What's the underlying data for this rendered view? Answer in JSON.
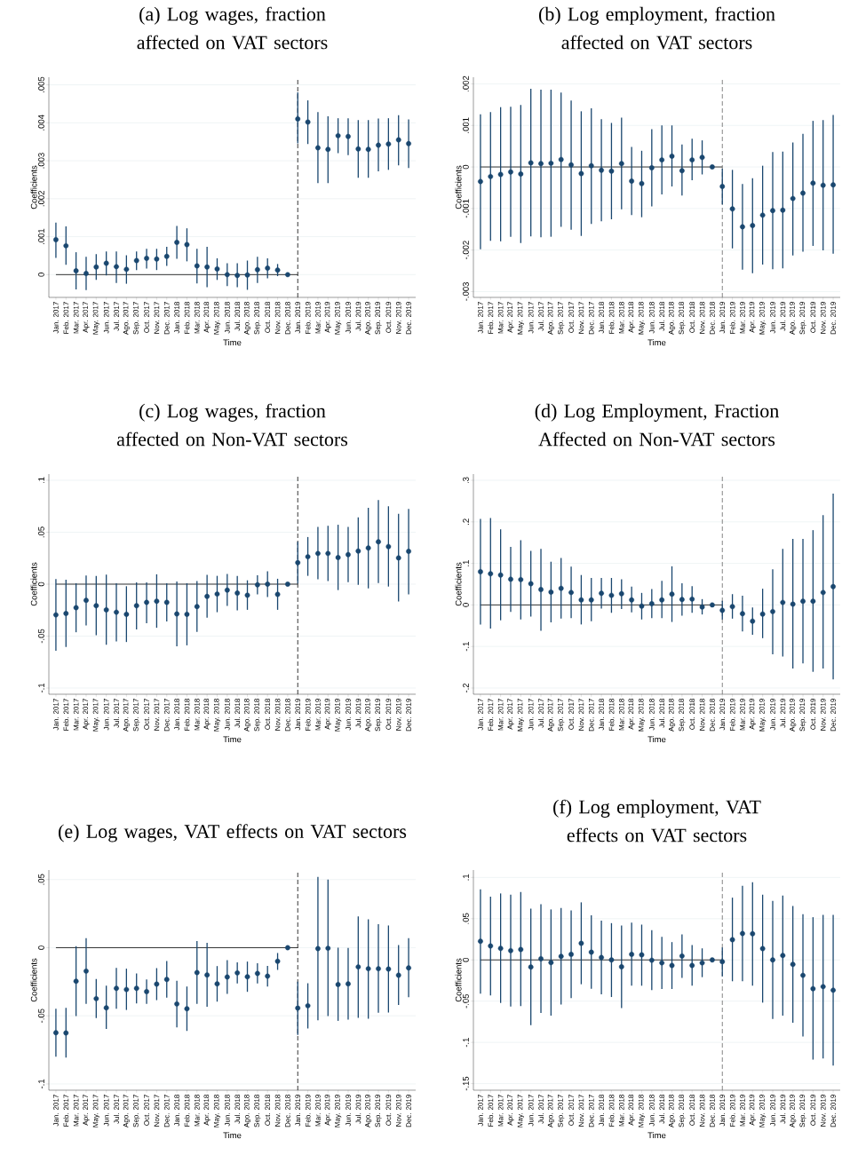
{
  "chart_data": [
    {
      "type": "scatter",
      "title": "(a) Log wages, fraction affected on VAT sectors",
      "xlabel": "Time",
      "ylabel": "Coefficients",
      "grid": "y",
      "marker": "circle",
      "categories": [
        "Jan. 2017",
        "Feb. 2017",
        "Mar. 2017",
        "Apr. 2017",
        "May. 2017",
        "Jun. 2017",
        "Jul. 2017",
        "Ago. 2017",
        "Sep. 2017",
        "Oct. 2017",
        "Nov. 2017",
        "Dec. 2017",
        "Jan. 2018",
        "Feb. 2018",
        "Mar. 2018",
        "Apr. 2018",
        "May. 2018",
        "Jun. 2018",
        "Jul. 2018",
        "Ago. 2018",
        "Sep. 2018",
        "Oct. 2018",
        "Nov. 2018",
        "Dec. 2018",
        "Jan. 2019",
        "Feb. 2019",
        "Mar. 2019",
        "Apr. 2019",
        "May. 2019",
        "Jun. 2019",
        "Jul. 2019",
        "Ago. 2019",
        "Sep. 2019",
        "Oct. 2019",
        "Nov. 2019",
        "Dec. 2019"
      ],
      "ylim": [
        -0.0006,
        0.0052
      ],
      "yticks": [
        0,
        {
          "value": 0.001,
          "label": ".001"
        },
        {
          "value": 0.002,
          "label": ".002"
        },
        {
          "value": 0.003,
          "label": ".003"
        },
        {
          "value": 0.004,
          "label": ".004"
        },
        {
          "value": 0.005,
          "label": ".005"
        }
      ],
      "ref_lines": [
        {
          "axis": "x",
          "value": "Jan. 2019",
          "line_style": "dashed",
          "color": "#000000"
        },
        {
          "axis": "y",
          "value": 0,
          "line_style": "solid",
          "color": "#000000"
        }
      ],
      "series": [
        {
          "color": "#1a476f",
          "values": [
            0.00092,
            0.00076,
            0.0001,
            3e-05,
            0.0002,
            0.0003,
            0.00021,
            0.00014,
            0.00037,
            0.00043,
            0.00041,
            0.00048,
            0.00085,
            0.00079,
            0.00023,
            0.0002,
            0.00015,
            0.0,
            -2e-05,
            -1e-05,
            0.00013,
            0.00017,
            0.00012,
            0.0,
            0.0041,
            0.00402,
            0.00334,
            0.0033,
            0.00366,
            0.00364,
            0.00331,
            0.0033,
            0.00341,
            0.00344,
            0.00355,
            0.00345
          ],
          "errors": [
            [
              0.00044,
              0.00137
            ],
            [
              0.00026,
              0.00127
            ],
            [
              -0.00039,
              0.00059
            ],
            [
              -0.00041,
              0.00047
            ],
            [
              -0.00014,
              0.00054
            ],
            [
              -2e-05,
              0.00061
            ],
            [
              -0.00022,
              0.00061
            ],
            [
              -0.00024,
              0.00051
            ],
            [
              0.00012,
              0.00061
            ],
            [
              0.00016,
              0.00068
            ],
            [
              0.00012,
              0.00068
            ],
            [
              0.00023,
              0.00073
            ],
            [
              0.00042,
              0.00128
            ],
            [
              0.00035,
              0.00122
            ],
            [
              -0.00023,
              0.00068
            ],
            [
              -0.00033,
              0.00073
            ],
            [
              -0.00014,
              0.00043
            ],
            [
              -0.0003,
              0.0003
            ],
            [
              -0.00033,
              0.0003
            ],
            [
              -0.0004,
              0.00037
            ],
            [
              -0.00022,
              0.00047
            ],
            [
              -0.0001,
              0.00043
            ],
            [
              -4e-05,
              0.00028
            ],
            null,
            [
              0.00346,
              0.0048
            ],
            [
              0.00344,
              0.00459
            ],
            [
              0.00241,
              0.00428
            ],
            [
              0.00241,
              0.00417
            ],
            [
              0.0032,
              0.00412
            ],
            [
              0.00315,
              0.00412
            ],
            [
              0.00255,
              0.00407
            ],
            [
              0.00255,
              0.00407
            ],
            [
              0.00272,
              0.00411
            ],
            [
              0.00276,
              0.00412
            ],
            [
              0.00288,
              0.0042
            ],
            [
              0.00281,
              0.00409
            ]
          ]
        }
      ]
    },
    {
      "type": "scatter",
      "title": "(b) Log employment, fraction affected on VAT sectors",
      "xlabel": "Time",
      "ylabel": "Coefficients",
      "grid": "y",
      "marker": "circle",
      "categories": [
        "Jan. 2017",
        "Feb. 2017",
        "Mar. 2017",
        "Apr. 2017",
        "May. 2017",
        "Jun. 2017",
        "Jul. 2017",
        "Ago. 2017",
        "Sep. 2017",
        "Oct. 2017",
        "Nov. 2017",
        "Dec. 2017",
        "Jan. 2018",
        "Feb. 2018",
        "Mar. 2018",
        "Apr. 2018",
        "May. 2018",
        "Jun. 2018",
        "Jul. 2018",
        "Ago. 2018",
        "Sep. 2018",
        "Oct. 2018",
        "Nov. 2018",
        "Dec. 2018",
        "Jan. 2019",
        "Feb. 2019",
        "Mar. 2019",
        "Apr. 2019",
        "May. 2019",
        "Jun. 2019",
        "Jul. 2019",
        "Ago. 2019",
        "Sep. 2019",
        "Oct. 2019",
        "Nov. 2019",
        "Dec. 2019"
      ],
      "ylim": [
        -0.00314,
        0.00216
      ],
      "yticks": [
        {
          "value": -0.003,
          "label": "-.003"
        },
        {
          "value": -0.002,
          "label": "-.002"
        },
        {
          "value": -0.001,
          "label": "-.001"
        },
        0,
        {
          "value": 0.001,
          "label": ".001"
        },
        {
          "value": 0.002,
          "label": ".002"
        }
      ],
      "ref_lines": [
        {
          "axis": "x",
          "value": "Jan. 2019",
          "line_style": "dashed",
          "color": "#666666"
        },
        {
          "axis": "y",
          "value": 0,
          "line_style": "solid",
          "color": "#000000"
        }
      ],
      "series": [
        {
          "color": "#1a476f",
          "values": [
            -0.00035,
            -0.00023,
            -0.00018,
            -0.00012,
            -0.00017,
            0.0001,
            8e-05,
            9e-05,
            0.00018,
            5e-05,
            -0.00016,
            3e-05,
            -8e-05,
            -0.0001,
            8e-05,
            -0.00034,
            -0.0004,
            -2e-05,
            0.00017,
            0.00026,
            -9e-05,
            0.00017,
            0.00023,
            0.0,
            -0.00047,
            -0.00101,
            -0.00144,
            -0.00141,
            -0.00116,
            -0.00105,
            -0.00104,
            -0.00076,
            -0.00063,
            -0.00039,
            -0.00044,
            -0.00043
          ],
          "errors": [
            [
              -0.00198,
              0.00127
            ],
            [
              -0.00178,
              0.00132
            ],
            [
              -0.00179,
              0.00144
            ],
            [
              -0.00168,
              0.00145
            ],
            [
              -0.00183,
              0.00149
            ],
            [
              -0.00167,
              0.00188
            ],
            [
              -0.00169,
              0.00186
            ],
            [
              -0.00168,
              0.00186
            ],
            [
              -0.00144,
              0.00179
            ],
            [
              -0.00151,
              0.0016
            ],
            [
              -0.00166,
              0.00134
            ],
            [
              -0.00137,
              0.00141
            ],
            [
              -0.00131,
              0.00115
            ],
            [
              -0.00126,
              0.00106
            ],
            [
              -0.00102,
              0.00119
            ],
            [
              -0.00116,
              0.00048
            ],
            [
              -0.00121,
              0.00039
            ],
            [
              -0.00095,
              0.00091
            ],
            [
              -0.00066,
              0.001
            ],
            [
              -0.00047,
              0.001
            ],
            [
              -0.00069,
              0.00054
            ],
            [
              -0.00032,
              0.00068
            ],
            [
              -0.00018,
              0.00064
            ],
            null,
            [
              -0.0009,
              -4e-05
            ],
            [
              -0.00196,
              -7e-05
            ],
            [
              -0.00247,
              -0.00041
            ],
            [
              -0.00256,
              -0.00027
            ],
            [
              -0.00235,
              3e-05
            ],
            [
              -0.00246,
              0.00036
            ],
            [
              -0.00244,
              0.00037
            ],
            [
              -0.00213,
              0.00059
            ],
            [
              -0.00204,
              0.0008
            ],
            [
              -0.0019,
              0.00111
            ],
            [
              -0.00201,
              0.00113
            ],
            [
              -0.00209,
              0.00125
            ]
          ]
        }
      ]
    },
    {
      "type": "scatter",
      "title": "(c) Log wages, fraction affected on Non-VAT sectors",
      "xlabel": "Time",
      "ylabel": "Coefficients",
      "grid": "y",
      "marker": "circle",
      "categories": [
        "Jan. 2017",
        "Feb. 2017",
        "Mar. 2017",
        "Apr. 2017",
        "May. 2017",
        "Jun. 2017",
        "Jul. 2017",
        "Ago. 2017",
        "Sep. 2017",
        "Oct. 2017",
        "Nov. 2017",
        "Dec. 2017",
        "Jan. 2018",
        "Feb. 2018",
        "Mar. 2018",
        "Apr. 2018",
        "May. 2018",
        "Jun. 2018",
        "Jul. 2018",
        "Ago. 2018",
        "Sep. 2018",
        "Oct. 2018",
        "Nov. 2018",
        "Dec. 2018",
        "Jan. 2019",
        "Feb. 2019",
        "Mar. 2019",
        "Apr. 2019",
        "May. 2019",
        "Jun. 2019",
        "Jul. 2019",
        "Ago. 2019",
        "Sep. 2019",
        "Oct. 2019",
        "Nov. 2019",
        "Dec. 2019"
      ],
      "ylim": [
        -0.106,
        0.106
      ],
      "yticks": [
        {
          "value": -0.1,
          "label": "-.1"
        },
        {
          "value": -0.05,
          "label": "-.05"
        },
        0,
        {
          "value": 0.05,
          "label": ".05"
        },
        {
          "value": 0.1,
          "label": ".1"
        }
      ],
      "ref_lines": [
        {
          "axis": "x",
          "value": "Jan. 2019",
          "line_style": "dashed",
          "color": "#000000"
        },
        {
          "axis": "y",
          "value": 0,
          "line_style": "solid",
          "color": "#000000"
        }
      ],
      "series": [
        {
          "color": "#1a476f",
          "values": [
            -0.0296,
            -0.0282,
            -0.0227,
            -0.0155,
            -0.0207,
            -0.0247,
            -0.027,
            -0.029,
            -0.0207,
            -0.0175,
            -0.0164,
            -0.0175,
            -0.0287,
            -0.029,
            -0.0216,
            -0.0118,
            -0.0095,
            -0.0057,
            -0.0086,
            -0.0106,
            -0.0006,
            0.0,
            -0.0098,
            0.0,
            0.0207,
            0.0264,
            0.0296,
            0.0296,
            0.0256,
            0.0284,
            0.0319,
            0.0348,
            0.0408,
            0.0362,
            0.0253,
            0.0316
          ],
          "errors": [
            [
              -0.0641,
              0.0049
            ],
            [
              -0.0604,
              0.0043
            ],
            [
              -0.0463,
              0.0009
            ],
            [
              -0.0397,
              0.0083
            ],
            [
              -0.0491,
              0.008
            ],
            [
              -0.0583,
              0.0092
            ],
            [
              -0.0552,
              0.0009
            ],
            [
              -0.0557,
              -0.002
            ],
            [
              -0.0437,
              0.0017
            ],
            [
              -0.0376,
              0.0017
            ],
            [
              -0.042,
              0.0095
            ],
            [
              -0.0359,
              0.0009
            ],
            [
              -0.0598,
              0.0026
            ],
            [
              -0.0589,
              0.0009
            ],
            [
              -0.046,
              0.0029
            ],
            [
              -0.0322,
              0.0089
            ],
            [
              -0.027,
              0.008
            ],
            [
              -0.021,
              0.0098
            ],
            [
              -0.0253,
              0.008
            ],
            [
              -0.0247,
              0.0037
            ],
            [
              -0.0098,
              0.0086
            ],
            [
              -0.0124,
              0.0124
            ],
            [
              -0.0247,
              0.0052
            ],
            null,
            [
              0.0006,
              0.0408
            ],
            [
              0.008,
              0.0454
            ],
            [
              0.0046,
              0.0552
            ],
            [
              0.0029,
              0.0563
            ],
            [
              -0.0057,
              0.0572
            ],
            [
              0.002,
              0.0552
            ],
            [
              -0.0006,
              0.0644
            ],
            [
              -0.004,
              0.0736
            ],
            [
              0.0011,
              0.081
            ],
            [
              -0.0023,
              0.075
            ],
            [
              -0.0167,
              0.0678
            ],
            [
              -0.0098,
              0.0724
            ]
          ]
        }
      ]
    },
    {
      "type": "scatter",
      "title": "(d) Log Employment, Fraction Affected on Non-VAT sectors",
      "xlabel": "Time",
      "ylabel": "Coefficients",
      "grid": "y",
      "marker": "circle",
      "categories": [
        "Jan. 2017",
        "Feb. 2017",
        "Mar. 2017",
        "Apr. 2017",
        "May. 2017",
        "Jun. 2017",
        "Jul. 2017",
        "Ago. 2017",
        "Sep. 2017",
        "Oct. 2017",
        "Nov. 2017",
        "Dec. 2017",
        "Jan. 2018",
        "Feb. 2018",
        "Mar. 2018",
        "Apr. 2018",
        "May. 2018",
        "Jun. 2018",
        "Jul. 2018",
        "Ago. 2018",
        "Sep. 2018",
        "Oct. 2018",
        "Nov. 2018",
        "Dec. 2018",
        "Jan. 2019",
        "Feb. 2019",
        "Mar. 2019",
        "Apr. 2019",
        "May. 2019",
        "Jun. 2019",
        "Jul. 2019",
        "Ago. 2019",
        "Sep. 2019",
        "Oct. 2019",
        "Nov. 2019",
        "Dec. 2019"
      ],
      "ylim": [
        -0.215,
        0.315
      ],
      "yticks": [
        {
          "value": -0.2,
          "label": "-.2"
        },
        {
          "value": -0.1,
          "label": "-.1"
        },
        0,
        {
          "value": 0.1,
          "label": ".1"
        },
        {
          "value": 0.2,
          "label": ".2"
        },
        {
          "value": 0.3,
          "label": ".3"
        }
      ],
      "ref_lines": [
        {
          "axis": "x",
          "value": "Jan. 2019",
          "line_style": "dashed",
          "color": "#666666"
        },
        {
          "axis": "y",
          "value": 0,
          "line_style": "solid",
          "color": "#000000"
        }
      ],
      "series": [
        {
          "color": "#1a476f",
          "values": [
            0.08,
            0.075,
            0.072,
            0.062,
            0.061,
            0.051,
            0.037,
            0.031,
            0.04,
            0.03,
            0.012,
            0.012,
            0.028,
            0.023,
            0.027,
            0.012,
            -0.003,
            0.003,
            0.012,
            0.026,
            0.013,
            0.014,
            -0.005,
            0.0,
            -0.013,
            -0.004,
            -0.021,
            -0.039,
            -0.022,
            -0.016,
            0.006,
            0.002,
            0.009,
            0.009,
            0.03,
            0.044
          ],
          "errors": [
            [
              -0.047,
              0.207
            ],
            [
              -0.057,
              0.209
            ],
            [
              -0.037,
              0.182
            ],
            [
              -0.017,
              0.14
            ],
            [
              -0.035,
              0.156
            ],
            [
              -0.028,
              0.13
            ],
            [
              -0.062,
              0.135
            ],
            [
              -0.042,
              0.104
            ],
            [
              -0.033,
              0.113
            ],
            [
              -0.032,
              0.092
            ],
            [
              -0.047,
              0.072
            ],
            [
              -0.039,
              0.065
            ],
            [
              -0.009,
              0.065
            ],
            [
              -0.019,
              0.065
            ],
            [
              -0.01,
              0.062
            ],
            [
              -0.018,
              0.044
            ],
            [
              -0.035,
              0.029
            ],
            [
              -0.032,
              0.038
            ],
            [
              -0.032,
              0.058
            ],
            [
              -0.041,
              0.093
            ],
            [
              -0.026,
              0.052
            ],
            [
              -0.019,
              0.045
            ],
            [
              -0.023,
              0.014
            ],
            null,
            [
              -0.035,
              0.01
            ],
            [
              -0.033,
              0.026
            ],
            [
              -0.064,
              0.022
            ],
            [
              -0.072,
              -0.006
            ],
            [
              -0.08,
              0.039
            ],
            [
              -0.119,
              0.086
            ],
            [
              -0.124,
              0.135
            ],
            [
              -0.153,
              0.159
            ],
            [
              -0.141,
              0.159
            ],
            [
              -0.161,
              0.18
            ],
            [
              -0.153,
              0.216
            ],
            [
              -0.179,
              0.268
            ]
          ]
        }
      ]
    },
    {
      "type": "scatter",
      "title": "(e) Log wages, VAT effects on VAT sectors",
      "xlabel": "Time",
      "ylabel": "Coefficients",
      "grid": "y",
      "marker": "circle",
      "categories": [
        "Jan. 2017",
        "Feb. 2017",
        "Mar. 2017",
        "Apr. 2017",
        "May. 2017",
        "Jun. 2017",
        "Jul. 2017",
        "Ago. 2017",
        "Sep. 2017",
        "Oct. 2017",
        "Nov. 2017",
        "Dec. 2017",
        "Jan. 2018",
        "Feb. 2018",
        "Mar. 2018",
        "Apr. 2018",
        "May. 2018",
        "Jun. 2018",
        "Jul. 2018",
        "Ago. 2018",
        "Sep. 2018",
        "Oct. 2018",
        "Nov. 2018",
        "Dec. 2018",
        "Jan. 2019",
        "Feb. 2019",
        "Mar. 2019",
        "Apr. 2019",
        "May. 2019",
        "Jun. 2019",
        "Jul. 2019",
        "Ago. 2019",
        "Sep. 2019",
        "Oct. 2019",
        "Nov. 2019",
        "Dec. 2019"
      ],
      "ylim": [
        -0.1046,
        0.057
      ],
      "yticks": [
        {
          "value": -0.1,
          "label": "-.1"
        },
        {
          "value": -0.05,
          "label": "-.05"
        },
        0,
        {
          "value": 0.05,
          "label": ".05"
        }
      ],
      "ref_lines": [
        {
          "axis": "x",
          "value": "Jan. 2019",
          "line_style": "dashed",
          "color": "#000000"
        },
        {
          "axis": "y",
          "value": 0,
          "line_style": "solid",
          "color": "#000000"
        }
      ],
      "series": [
        {
          "color": "#1a476f",
          "values": [
            -0.0624,
            -0.0626,
            -0.0246,
            -0.0172,
            -0.0374,
            -0.0441,
            -0.0298,
            -0.0307,
            -0.0298,
            -0.0322,
            -0.0267,
            -0.0233,
            -0.0413,
            -0.0448,
            -0.0183,
            -0.02,
            -0.0265,
            -0.0215,
            -0.0185,
            -0.0213,
            -0.0189,
            -0.0209,
            -0.01,
            0.0,
            -0.0443,
            -0.0426,
            -0.0007,
            -0.0004,
            -0.027,
            -0.0265,
            -0.0141,
            -0.0154,
            -0.0154,
            -0.0157,
            -0.0202,
            -0.0148
          ],
          "errors": [
            [
              -0.08,
              -0.0448
            ],
            [
              -0.0807,
              -0.0441
            ],
            [
              -0.0502,
              0.0011
            ],
            [
              -0.0413,
              0.007
            ],
            [
              -0.0517,
              -0.023
            ],
            [
              -0.0596,
              -0.0278
            ],
            [
              -0.0448,
              -0.0148
            ],
            [
              -0.0457,
              -0.0154
            ],
            [
              -0.0409,
              -0.0189
            ],
            [
              -0.0413,
              -0.0233
            ],
            [
              -0.0385,
              -0.015
            ],
            [
              -0.0367,
              -0.0098
            ],
            [
              -0.0585,
              -0.0243
            ],
            [
              -0.0611,
              -0.0285
            ],
            [
              -0.0413,
              0.0048
            ],
            [
              -0.0433,
              0.0035
            ],
            [
              -0.0396,
              -0.0135
            ],
            [
              -0.0339,
              -0.0091
            ],
            [
              -0.0263,
              -0.0107
            ],
            [
              -0.0324,
              -0.0102
            ],
            [
              -0.0263,
              -0.0115
            ],
            [
              -0.0285,
              -0.0133
            ],
            [
              -0.0163,
              -0.0039
            ],
            null,
            [
              -0.0641,
              -0.025
            ],
            [
              -0.0593,
              -0.0261
            ],
            [
              -0.0533,
              0.052
            ],
            [
              -0.0502,
              0.05
            ],
            [
              -0.0537,
              0.0
            ],
            [
              -0.0528,
              -0.0002
            ],
            [
              -0.0515,
              0.023
            ],
            [
              -0.0522,
              0.0209
            ],
            [
              -0.0478,
              0.0172
            ],
            [
              -0.0476,
              0.0163
            ],
            [
              -0.042,
              0.002
            ],
            [
              -0.0363,
              0.007
            ]
          ]
        }
      ]
    },
    {
      "type": "scatter",
      "title": "(f) Log employment, VAT effects on VAT sectors",
      "xlabel": "Time",
      "ylabel": "Coefficients",
      "grid": "y",
      "marker": "circle",
      "categories": [
        "Jan. 2017",
        "Feb. 2017",
        "Mar. 2017",
        "Apr. 2017",
        "May. 2017",
        "Jun. 2017",
        "Jul. 2017",
        "Ago. 2017",
        "Sep. 2017",
        "Oct. 2017",
        "Nov. 2017",
        "Dec. 2017",
        "Jan. 2018",
        "Feb. 2018",
        "Mar. 2018",
        "Apr. 2018",
        "May. 2018",
        "Jun. 2018",
        "Jul. 2018",
        "Ago. 2018",
        "Sep. 2018",
        "Oct. 2018",
        "Nov. 2018",
        "Dec. 2018",
        "Jan. 2019",
        "Feb. 2019",
        "Mar. 2019",
        "Apr. 2019",
        "May. 2019",
        "Jun. 2019",
        "Jul. 2019",
        "Ago. 2019",
        "Sep. 2019",
        "Oct. 2019",
        "Nov. 2019",
        "Dec. 2019"
      ],
      "ylim": [
        -0.158,
        0.109
      ],
      "yticks": [
        {
          "value": -0.15,
          "label": "-.15"
        },
        {
          "value": -0.1,
          "label": "-.1"
        },
        {
          "value": -0.05,
          "label": "-.05"
        },
        0,
        {
          "value": 0.05,
          "label": ".05"
        },
        {
          "value": 0.1,
          "label": ".1"
        }
      ],
      "ref_lines": [
        {
          "axis": "x",
          "value": "Jan. 2019",
          "line_style": "dashed",
          "color": "#666666"
        },
        {
          "axis": "y",
          "value": 0,
          "line_style": "solid",
          "color": "#000000"
        }
      ],
      "series": [
        {
          "color": "#1a476f",
          "values": [
            0.0227,
            0.0169,
            0.014,
            0.0112,
            0.0126,
            -0.0086,
            0.0014,
            -0.0032,
            0.0043,
            0.0068,
            0.0201,
            0.0094,
            0.0029,
            0.0,
            -0.0083,
            0.0068,
            0.0061,
            -0.0004,
            -0.0036,
            -0.0068,
            0.0047,
            -0.0068,
            -0.0036,
            0.0,
            -0.0022,
            0.0245,
            0.032,
            0.0317,
            0.0137,
            0.0,
            0.0054,
            -0.0054,
            -0.0187,
            -0.0349,
            -0.0324,
            -0.0367
          ],
          "errors": [
            [
              -0.041,
              0.0856
            ],
            [
              -0.0432,
              0.0766
            ],
            [
              -0.0522,
              0.0806
            ],
            [
              -0.0565,
              0.0791
            ],
            [
              -0.0561,
              0.0824
            ],
            [
              -0.0791,
              0.0622
            ],
            [
              -0.0644,
              0.0676
            ],
            [
              -0.0676,
              0.0612
            ],
            [
              -0.054,
              0.0629
            ],
            [
              -0.0464,
              0.0601
            ],
            [
              -0.0295,
              0.0698
            ],
            [
              -0.0349,
              0.054
            ],
            [
              -0.0417,
              0.0475
            ],
            [
              -0.045,
              0.0446
            ],
            [
              -0.0583,
              0.0417
            ],
            [
              -0.0313,
              0.0453
            ],
            [
              -0.0313,
              0.0428
            ],
            [
              -0.0367,
              0.036
            ],
            [
              -0.0353,
              0.0281
            ],
            [
              -0.0353,
              0.0216
            ],
            [
              -0.0219,
              0.0309
            ],
            [
              -0.0313,
              0.018
            ],
            [
              -0.0209,
              0.014
            ],
            null,
            [
              -0.02,
              0.015
            ],
            [
              -0.0259,
              0.0755
            ],
            [
              -0.0259,
              0.0899
            ],
            [
              -0.0313,
              0.0942
            ],
            [
              -0.0518,
              0.0791
            ],
            [
              -0.0716,
              0.0716
            ],
            [
              -0.0676,
              0.0781
            ],
            [
              -0.0763,
              0.0655
            ],
            [
              -0.0928,
              0.0554
            ],
            [
              -0.1209,
              0.0518
            ],
            [
              -0.1194,
              0.0547
            ],
            [
              -0.1281,
              0.0547
            ]
          ]
        }
      ]
    }
  ]
}
